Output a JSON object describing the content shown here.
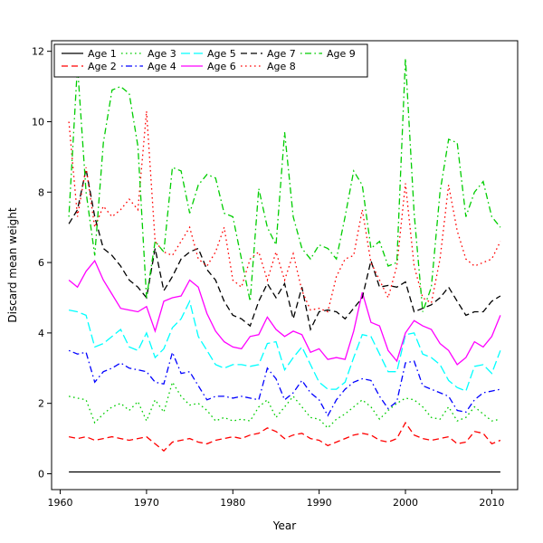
{
  "chart_data": {
    "type": "line",
    "title": "",
    "xlabel": "Year",
    "ylabel": "Discard mean weight",
    "x_range": [
      1959,
      2013
    ],
    "y_range": [
      -0.45,
      12.3
    ],
    "x_ticks": [
      1960,
      1970,
      1980,
      1990,
      2000,
      2010
    ],
    "y_ticks": [
      0,
      2,
      4,
      6,
      8,
      10,
      12
    ],
    "grid": false,
    "legend_position": "top-left",
    "legend_columns": 5,
    "background": "#ffffff",
    "years": [
      1961,
      1962,
      1963,
      1964,
      1965,
      1966,
      1967,
      1968,
      1969,
      1970,
      1971,
      1972,
      1973,
      1974,
      1975,
      1976,
      1977,
      1978,
      1979,
      1980,
      1981,
      1982,
      1983,
      1984,
      1985,
      1986,
      1987,
      1988,
      1989,
      1990,
      1991,
      1992,
      1993,
      1994,
      1995,
      1996,
      1997,
      1998,
      1999,
      2000,
      2001,
      2002,
      2003,
      2004,
      2005,
      2006,
      2007,
      2008,
      2009,
      2010,
      2011
    ],
    "series": [
      {
        "name": "Age 1",
        "color": "#000000",
        "dash": "solid",
        "values": [
          0.05,
          0.05,
          0.05,
          0.05,
          0.05,
          0.05,
          0.05,
          0.05,
          0.05,
          0.05,
          0.05,
          0.05,
          0.05,
          0.05,
          0.05,
          0.05,
          0.05,
          0.05,
          0.05,
          0.05,
          0.05,
          0.05,
          0.05,
          0.05,
          0.05,
          0.05,
          0.05,
          0.05,
          0.05,
          0.05,
          0.05,
          0.05,
          0.05,
          0.05,
          0.05,
          0.05,
          0.05,
          0.05,
          0.05,
          0.05,
          0.05,
          0.05,
          0.05,
          0.05,
          0.05,
          0.05,
          0.05,
          0.05,
          0.05,
          0.05,
          0.05
        ]
      },
      {
        "name": "Age 2",
        "color": "#FF0000",
        "dash": "dashed",
        "values": [
          1.05,
          1.0,
          1.05,
          0.95,
          1.0,
          1.05,
          1.0,
          0.95,
          1.0,
          1.05,
          0.85,
          0.65,
          0.9,
          0.95,
          1.0,
          0.9,
          0.85,
          0.95,
          1.0,
          1.05,
          1.0,
          1.1,
          1.15,
          1.3,
          1.2,
          1.0,
          1.1,
          1.15,
          1.0,
          0.95,
          0.8,
          0.9,
          1.0,
          1.1,
          1.15,
          1.1,
          0.95,
          0.9,
          1.0,
          1.45,
          1.1,
          1.0,
          0.95,
          1.0,
          1.05,
          0.85,
          0.9,
          1.2,
          1.15,
          0.85,
          0.95
        ]
      },
      {
        "name": "Age 3",
        "color": "#00CD00",
        "dash": "dotted",
        "values": [
          2.2,
          2.15,
          2.1,
          1.45,
          1.7,
          1.9,
          2.0,
          1.8,
          2.05,
          1.5,
          2.1,
          1.75,
          2.6,
          2.2,
          1.95,
          2.0,
          1.8,
          1.5,
          1.6,
          1.5,
          1.55,
          1.5,
          1.9,
          2.1,
          1.6,
          1.9,
          2.2,
          1.9,
          1.6,
          1.55,
          1.3,
          1.55,
          1.7,
          1.9,
          2.1,
          1.9,
          1.55,
          1.8,
          2.0,
          2.15,
          2.1,
          1.9,
          1.6,
          1.55,
          1.9,
          1.5,
          1.6,
          1.9,
          1.7,
          1.5,
          1.55
        ]
      },
      {
        "name": "Age 4",
        "color": "#0000FF",
        "dash": "dotdash",
        "values": [
          3.5,
          3.4,
          3.45,
          2.6,
          2.9,
          3.0,
          3.15,
          3.0,
          2.95,
          2.9,
          2.6,
          2.55,
          3.45,
          2.85,
          2.9,
          2.5,
          2.1,
          2.2,
          2.2,
          2.15,
          2.2,
          2.15,
          2.1,
          3.0,
          2.7,
          2.1,
          2.3,
          2.65,
          2.3,
          2.1,
          1.65,
          2.1,
          2.4,
          2.6,
          2.7,
          2.65,
          2.2,
          1.85,
          2.05,
          3.15,
          3.2,
          2.5,
          2.4,
          2.3,
          2.2,
          1.8,
          1.75,
          2.1,
          2.3,
          2.35,
          2.4
        ]
      },
      {
        "name": "Age 5",
        "color": "#00FFFF",
        "dash": "longdash",
        "values": [
          4.65,
          4.6,
          4.5,
          3.6,
          3.7,
          3.9,
          4.1,
          3.6,
          3.5,
          4.0,
          3.3,
          3.55,
          4.15,
          4.4,
          4.9,
          3.9,
          3.5,
          3.1,
          3.0,
          3.1,
          3.1,
          3.05,
          3.1,
          3.7,
          3.75,
          2.95,
          3.3,
          3.6,
          3.1,
          2.6,
          2.4,
          2.4,
          2.6,
          3.3,
          3.95,
          3.9,
          3.4,
          2.9,
          2.9,
          3.95,
          4.0,
          3.4,
          3.3,
          3.1,
          2.65,
          2.45,
          2.35,
          3.05,
          3.1,
          2.85,
          3.5
        ]
      },
      {
        "name": "Age 6",
        "color": "#FF00FF",
        "dash": "solid",
        "values": [
          5.5,
          5.3,
          5.75,
          6.05,
          5.5,
          5.1,
          4.7,
          4.65,
          4.6,
          4.75,
          4.05,
          4.9,
          5.0,
          5.05,
          5.5,
          5.3,
          4.55,
          4.05,
          3.75,
          3.6,
          3.55,
          3.9,
          3.95,
          4.45,
          4.1,
          3.9,
          4.05,
          3.95,
          3.45,
          3.55,
          3.25,
          3.3,
          3.25,
          4.05,
          5.15,
          4.3,
          4.2,
          3.5,
          3.2,
          4.0,
          4.35,
          4.2,
          4.1,
          3.7,
          3.5,
          3.1,
          3.3,
          3.75,
          3.6,
          3.9,
          4.5
        ]
      },
      {
        "name": "Age 7",
        "color": "#000000",
        "dash": "dashed",
        "values": [
          7.1,
          7.5,
          8.65,
          7.3,
          6.4,
          6.2,
          5.9,
          5.5,
          5.3,
          5.0,
          6.4,
          5.2,
          5.6,
          6.1,
          6.3,
          6.4,
          5.8,
          5.5,
          4.9,
          4.5,
          4.4,
          4.2,
          4.9,
          5.4,
          5.0,
          5.4,
          4.4,
          5.3,
          4.1,
          4.6,
          4.65,
          4.6,
          4.4,
          4.7,
          5.0,
          6.05,
          5.3,
          5.35,
          5.3,
          5.45,
          4.6,
          4.7,
          4.8,
          5.0,
          5.3,
          4.9,
          4.5,
          4.6,
          4.6,
          4.9,
          5.05
        ]
      },
      {
        "name": "Age 8",
        "color": "#FF0000",
        "dash": "dotted",
        "values": [
          10.0,
          7.3,
          8.7,
          7.0,
          7.6,
          7.3,
          7.5,
          7.8,
          7.5,
          10.3,
          6.6,
          6.3,
          6.2,
          6.6,
          7.0,
          6.1,
          5.9,
          6.3,
          7.0,
          5.5,
          5.3,
          6.1,
          6.3,
          5.5,
          6.3,
          5.5,
          6.25,
          5.2,
          4.65,
          4.7,
          4.6,
          5.6,
          6.1,
          6.2,
          7.5,
          6.0,
          5.5,
          5.0,
          5.9,
          8.25,
          5.9,
          5.0,
          4.85,
          6.1,
          8.2,
          6.9,
          6.1,
          5.9,
          6.0,
          6.1,
          6.6
        ]
      },
      {
        "name": "Age 9",
        "color": "#00CD00",
        "dash": "dotdash",
        "values": [
          7.3,
          11.6,
          8.0,
          6.2,
          9.4,
          10.9,
          11.0,
          10.8,
          9.3,
          5.0,
          6.6,
          6.3,
          8.7,
          8.6,
          7.4,
          8.2,
          8.5,
          8.4,
          7.4,
          7.3,
          6.1,
          4.9,
          8.1,
          7.0,
          6.5,
          9.7,
          7.3,
          6.4,
          6.1,
          6.5,
          6.4,
          6.1,
          7.3,
          8.6,
          8.2,
          6.4,
          6.6,
          5.9,
          6.0,
          11.8,
          7.4,
          4.6,
          5.3,
          8.0,
          9.5,
          9.4,
          7.3,
          8.0,
          8.3,
          7.3,
          7.0
        ]
      }
    ]
  }
}
